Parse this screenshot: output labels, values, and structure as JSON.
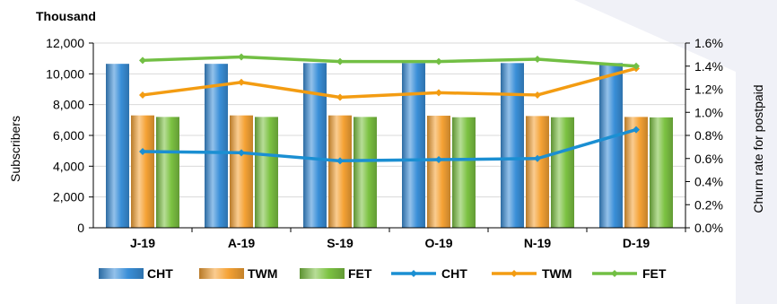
{
  "chart_data": {
    "type": "bar",
    "title": "Thousand",
    "categories": [
      "J-19",
      "A-19",
      "S-19",
      "O-19",
      "N-19",
      "D-19"
    ],
    "ylabel": "Subscribers",
    "y2label": "Churn rate for postpaid",
    "ylim": [
      0,
      12000
    ],
    "yticks": [
      "0",
      "2,000",
      "4,000",
      "6,000",
      "8,000",
      "10,000",
      "12,000"
    ],
    "y2lim": [
      0,
      0.016
    ],
    "y2ticks": [
      "0.0%",
      "0.2%",
      "0.4%",
      "0.6%",
      "0.8%",
      "1.0%",
      "1.2%",
      "1.4%",
      "1.6%"
    ],
    "grid": true,
    "legend_position": "bottom",
    "bar_series": [
      {
        "name": "CHT",
        "color": "#3a8fd8",
        "values": [
          10650,
          10650,
          10700,
          10700,
          10700,
          10700
        ]
      },
      {
        "name": "TWM",
        "color": "#f5a235",
        "values": [
          7300,
          7300,
          7300,
          7280,
          7260,
          7200
        ]
      },
      {
        "name": "FET",
        "color": "#7cc242",
        "values": [
          7200,
          7200,
          7200,
          7180,
          7180,
          7170
        ]
      }
    ],
    "line_series": [
      {
        "name": "CHT",
        "color": "#1b8fd2",
        "values": [
          0.0066,
          0.0065,
          0.0058,
          0.0059,
          0.006,
          0.0085
        ]
      },
      {
        "name": "TWM",
        "color": "#f39c12",
        "values": [
          0.0115,
          0.0126,
          0.0113,
          0.0117,
          0.0115,
          0.0138
        ]
      },
      {
        "name": "FET",
        "color": "#72bf44",
        "values": [
          0.0145,
          0.0148,
          0.0144,
          0.0144,
          0.0146,
          0.014
        ]
      }
    ]
  }
}
